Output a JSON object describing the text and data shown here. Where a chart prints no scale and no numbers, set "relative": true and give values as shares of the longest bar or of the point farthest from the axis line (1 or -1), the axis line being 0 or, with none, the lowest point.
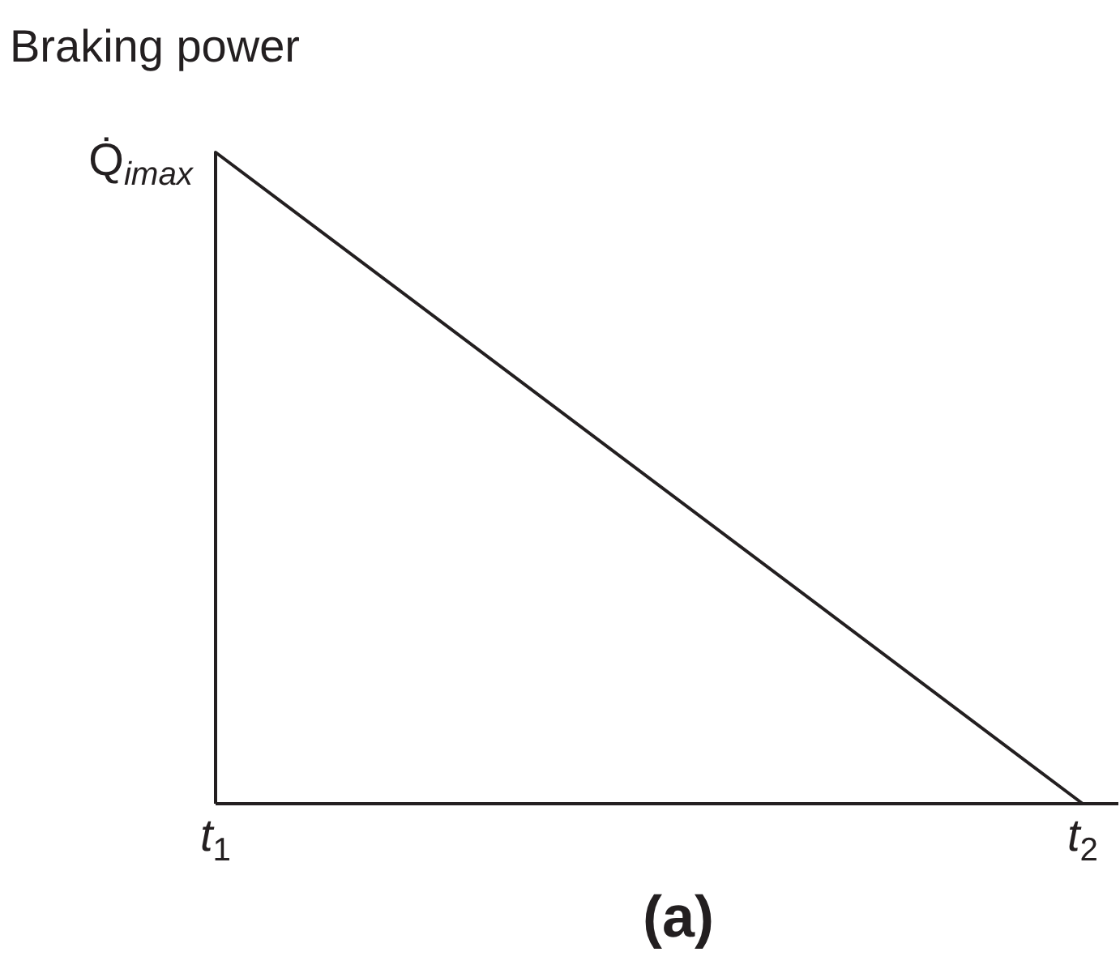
{
  "chart_data": {
    "type": "line",
    "relative": true,
    "ylabel": "Braking power",
    "categories": [
      "t$_{1}$",
      "t$_{2}$"
    ],
    "series": [
      {
        "color": "#231f20",
        "values": [
          1,
          0
        ]
      }
    ],
    "line_style": "solid",
    "annotations": [
      "(a)",
      {
        "text": "Q̇$_{imax}$",
        "x": "t$_{1}$",
        "y": 1
      }
    ]
  }
}
